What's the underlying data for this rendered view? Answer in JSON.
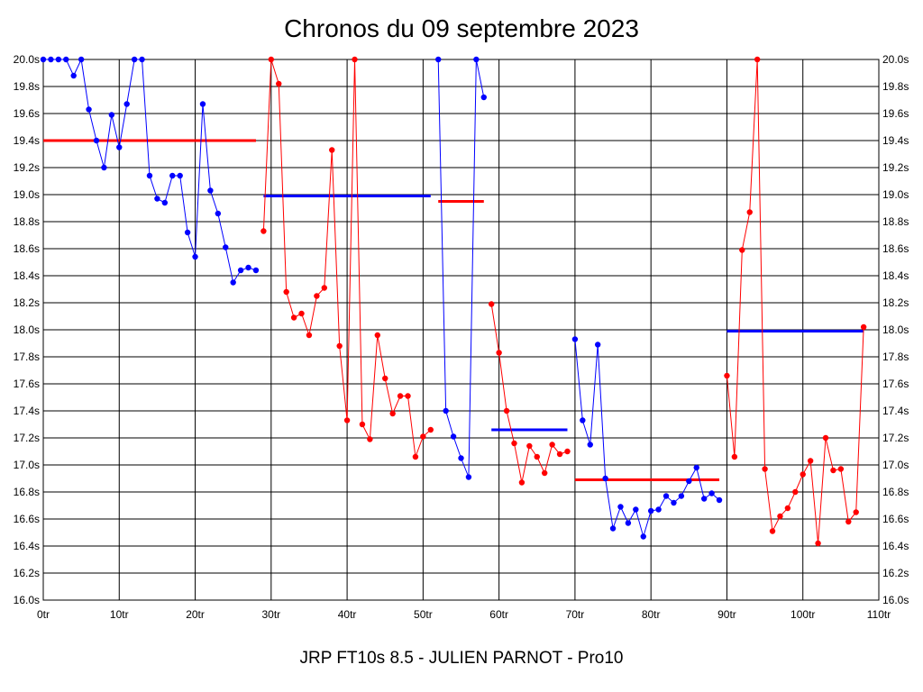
{
  "chart_data": {
    "type": "line",
    "title": "Chronos du 09 septembre 2023",
    "subtitle": "JRP FT10s 8.5 - JULIEN PARNOT - Pro10",
    "xlim": [
      0,
      110
    ],
    "ylim": [
      16.0,
      20.0
    ],
    "x_ticks": [
      0,
      10,
      20,
      30,
      40,
      50,
      60,
      70,
      80,
      90,
      100,
      110
    ],
    "x_tick_labels": [
      "0tr",
      "10tr",
      "20tr",
      "30tr",
      "40tr",
      "50tr",
      "60tr",
      "70tr",
      "80tr",
      "90tr",
      "100tr",
      "110tr"
    ],
    "y_ticks": [
      16.0,
      16.2,
      16.4,
      16.6,
      16.8,
      17.0,
      17.2,
      17.4,
      17.6,
      17.8,
      18.0,
      18.2,
      18.4,
      18.6,
      18.8,
      19.0,
      19.2,
      19.4,
      19.6,
      19.8,
      20.0
    ],
    "y_tick_labels": [
      "16.0s",
      "16.2s",
      "16.4s",
      "16.6s",
      "16.8s",
      "17.0s",
      "17.2s",
      "17.4s",
      "17.6s",
      "17.8s",
      "18.0s",
      "18.2s",
      "18.4s",
      "18.6s",
      "18.8s",
      "19.0s",
      "19.2s",
      "19.4s",
      "19.6s",
      "19.8s",
      "20.0s"
    ],
    "grid": true,
    "series": [
      {
        "color": "#0000ff",
        "x": [
          0,
          1,
          2,
          3,
          4,
          5,
          6,
          7,
          8,
          9,
          10,
          11,
          12,
          13,
          14,
          15,
          16,
          17,
          18,
          19,
          20,
          21,
          22,
          23,
          24,
          25,
          26,
          27,
          28
        ],
        "y": [
          20.0,
          20.0,
          20.0,
          20.0,
          19.88,
          20.0,
          19.63,
          19.4,
          19.2,
          19.59,
          19.35,
          19.67,
          20.0,
          20.0,
          19.14,
          18.97,
          18.94,
          19.14,
          19.14,
          18.72,
          18.54,
          19.67,
          19.03,
          18.86,
          18.61,
          18.35,
          18.44,
          18.46,
          18.44
        ],
        "mean": 19.4,
        "mean_color": "#ff0000",
        "mean_range": [
          0,
          28
        ]
      },
      {
        "color": "#ff0000",
        "x": [
          29,
          30,
          31,
          32,
          33,
          34,
          35,
          36,
          37,
          38,
          39,
          40,
          41,
          42,
          43,
          44,
          45,
          46,
          47,
          48,
          49,
          50,
          51
        ],
        "y": [
          18.73,
          20.0,
          19.82,
          18.28,
          18.09,
          18.12,
          17.96,
          18.25,
          18.31,
          19.33,
          17.88,
          17.33,
          20.0,
          17.3,
          17.19,
          17.96,
          17.64,
          17.38,
          17.51,
          17.51,
          17.06,
          17.21,
          17.26
        ],
        "mean": 18.99,
        "mean_color": "#0000ff",
        "mean_range": [
          29,
          51
        ]
      },
      {
        "color": "#0000ff",
        "x": [
          52,
          53,
          54,
          55,
          56,
          57,
          58
        ],
        "y": [
          20.0,
          17.4,
          17.21,
          17.05,
          16.91,
          20.0,
          19.72
        ],
        "mean": 18.95,
        "mean_color": "#ff0000",
        "mean_range": [
          52,
          58
        ]
      },
      {
        "color": "#ff0000",
        "x": [
          59,
          60,
          61,
          62,
          63,
          64,
          65,
          66,
          67,
          68,
          69
        ],
        "y": [
          18.19,
          17.83,
          17.4,
          17.16,
          16.87,
          17.14,
          17.06,
          16.94,
          17.15,
          17.08,
          17.1
        ],
        "mean": 17.26,
        "mean_color": "#0000ff",
        "mean_range": [
          59,
          69
        ]
      },
      {
        "color": "#0000ff",
        "x": [
          70,
          71,
          72,
          73,
          74,
          75,
          76,
          77,
          78,
          79,
          80,
          81,
          82,
          83,
          84,
          85,
          86,
          87,
          88,
          89
        ],
        "y": [
          17.93,
          17.33,
          17.15,
          17.89,
          16.9,
          16.53,
          16.69,
          16.57,
          16.67,
          16.47,
          16.66,
          16.67,
          16.77,
          16.72,
          16.77,
          16.88,
          16.98,
          16.75,
          16.79,
          16.74
        ],
        "mean": 16.89,
        "mean_color": "#ff0000",
        "mean_range": [
          70,
          89
        ]
      },
      {
        "color": "#ff0000",
        "x": [
          90,
          91,
          92,
          93,
          94,
          95,
          96,
          97,
          98,
          99,
          100,
          101,
          102,
          103,
          104,
          105,
          106,
          107,
          108
        ],
        "y": [
          17.66,
          17.06,
          18.59,
          18.87,
          20.0,
          16.97,
          16.51,
          16.62,
          16.68,
          16.8,
          16.93,
          17.03,
          16.42,
          17.2,
          16.96,
          16.97,
          16.58,
          16.65,
          18.02
        ],
        "mean": 17.99,
        "mean_color": "#0000ff",
        "mean_range": [
          90,
          108
        ]
      }
    ]
  }
}
